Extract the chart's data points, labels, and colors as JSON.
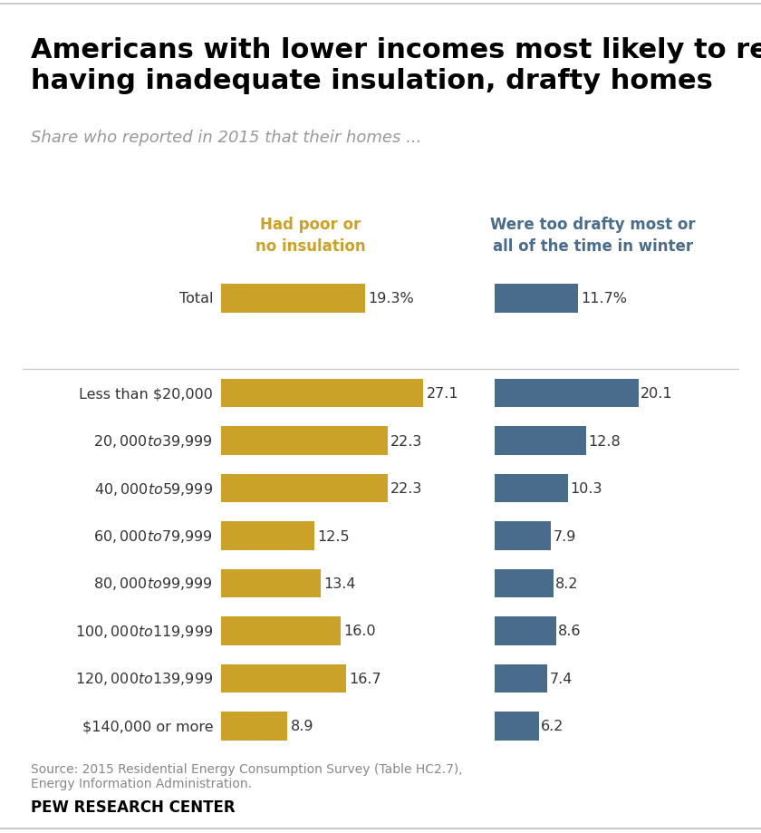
{
  "title": "Americans with lower incomes most likely to report\nhaving inadequate insulation, drafty homes",
  "subtitle": "Share who reported in 2015 that their homes ...",
  "categories": [
    "Total",
    "",
    "Less than $20,000",
    "$20,000 to $39,999",
    "$40,000 to $59,999",
    "$60,000 to $79,999",
    "$80,000 to $99,999",
    "$100,000 to $119,999",
    "$120,000 to $139,999",
    "$140,000 or more"
  ],
  "insulation_values": [
    19.3,
    null,
    27.1,
    22.3,
    22.3,
    12.5,
    13.4,
    16.0,
    16.7,
    8.9
  ],
  "drafty_values": [
    11.7,
    null,
    20.1,
    12.8,
    10.3,
    7.9,
    8.2,
    8.6,
    7.4,
    6.2
  ],
  "insulation_label": "Had poor or\nno insulation",
  "drafty_label": "Were too drafty most or\nall of the time in winter",
  "insulation_color": "#C9A227",
  "drafty_color": "#4A6C8C",
  "bar_height": 0.6,
  "source_text": "Source: 2015 Residential Energy Consumption Survey (Table HC2.7),\nEnergy Information Administration.",
  "footer_text": "PEW RESEARCH CENTER",
  "title_fontsize": 22,
  "subtitle_fontsize": 13,
  "label_fontsize": 11.5,
  "value_fontsize": 11.5,
  "header_fontsize": 12,
  "source_fontsize": 10,
  "footer_fontsize": 12,
  "background_color": "#FFFFFF",
  "subtitle_color": "#999999",
  "title_color": "#000000",
  "source_color": "#888888",
  "footer_color": "#000000",
  "insulation_label_color": "#C9A227",
  "drafty_label_color": "#4A6C8C",
  "max_insulation": 30,
  "max_drafty": 25,
  "sep_line_color": "#cccccc",
  "label_color": "#333333",
  "value_color": "#333333"
}
